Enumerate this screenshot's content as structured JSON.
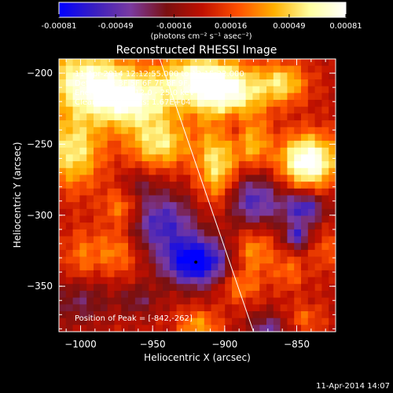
{
  "colors": {
    "background": "#000000",
    "text": "#ffffff",
    "colormap": [
      "#0000ff",
      "#3a1fc0",
      "#7a3aa0",
      "#7a1010",
      "#c01000",
      "#ff5000",
      "#ffb000",
      "#ffffa0",
      "#ffffff"
    ]
  },
  "colorbar": {
    "tick_labels": [
      "-0.00081",
      "-0.00049",
      "-0.00016",
      "0.00016",
      "0.00049",
      "0.00081"
    ],
    "unit_label": "(photons cm⁻² s⁻¹ asec⁻²)"
  },
  "annotations": {
    "time_range": "11-Apr-2014 12:12:55.000 to 12:15:32.000",
    "detectors": "Detectors: 3F 5F 6F 7F 8F 9F, Att 0",
    "energy_range": "Energy Range: 12.0 - 25.0 keV",
    "clean": "Clean     Total counts: 1.67E+04",
    "peak": "Position of Peak = [-842,-262]"
  },
  "footer_timestamp": "11-Apr-2014 14:07",
  "chart_data": {
    "type": "heatmap",
    "title": "Reconstructed RHESSI Image",
    "xlabel": "Heliocentric X (arcsec)",
    "ylabel": "Heliocentric Y (arcsec)",
    "xlim": [
      -1015,
      -823
    ],
    "ylim": [
      -382,
      -190
    ],
    "x_ticks": [
      -1000,
      -950,
      -900,
      -850
    ],
    "y_ticks": [
      -200,
      -250,
      -300,
      -350
    ],
    "x_tick_labels": [
      "−1000",
      "−950",
      "−900",
      "−850"
    ],
    "y_tick_labels": [
      "−200",
      "−250",
      "−300",
      "−350"
    ],
    "colorbar_range": [
      -0.00081,
      0.00081
    ],
    "peak_position": [
      -842,
      -262
    ],
    "limb_line": [
      [
        -945,
        -190
      ],
      [
        -880,
        -382
      ]
    ],
    "min_marker": [
      -920,
      -333
    ],
    "grid": false,
    "blobs": [
      {
        "x": -997,
        "y": -205,
        "sx": 22,
        "sy": 16,
        "a": 1.0
      },
      {
        "x": -965,
        "y": -220,
        "sx": 20,
        "sy": 14,
        "a": 1.0
      },
      {
        "x": -920,
        "y": -205,
        "sx": 18,
        "sy": 13,
        "a": 1.05
      },
      {
        "x": -895,
        "y": -215,
        "sx": 16,
        "sy": 14,
        "a": 0.95
      },
      {
        "x": -860,
        "y": -207,
        "sx": 12,
        "sy": 10,
        "a": 0.75
      },
      {
        "x": -1005,
        "y": -255,
        "sx": 14,
        "sy": 18,
        "a": 0.85
      },
      {
        "x": -945,
        "y": -250,
        "sx": 15,
        "sy": 12,
        "a": 0.8
      },
      {
        "x": -905,
        "y": -265,
        "sx": 10,
        "sy": 20,
        "a": 0.85
      },
      {
        "x": -880,
        "y": -250,
        "sx": 8,
        "sy": 12,
        "a": 0.6
      },
      {
        "x": -842,
        "y": -262,
        "sx": 14,
        "sy": 13,
        "a": 1.3
      },
      {
        "x": -970,
        "y": -295,
        "sx": 10,
        "sy": 10,
        "a": 0.6
      },
      {
        "x": -975,
        "y": -325,
        "sx": 12,
        "sy": 12,
        "a": 0.5
      },
      {
        "x": -1000,
        "y": -330,
        "sx": 8,
        "sy": 14,
        "a": 0.35
      },
      {
        "x": -880,
        "y": -325,
        "sx": 10,
        "sy": 12,
        "a": 0.55
      },
      {
        "x": -890,
        "y": -350,
        "sx": 10,
        "sy": 8,
        "a": 0.45
      },
      {
        "x": -855,
        "y": -340,
        "sx": 8,
        "sy": 9,
        "a": 0.35
      },
      {
        "x": -830,
        "y": -325,
        "sx": 6,
        "sy": 10,
        "a": 0.3
      },
      {
        "x": -918,
        "y": -378,
        "sx": 10,
        "sy": 8,
        "a": 0.55
      },
      {
        "x": -845,
        "y": -373,
        "sx": 9,
        "sy": 7,
        "a": 0.35
      },
      {
        "x": -920,
        "y": -333,
        "sx": 16,
        "sy": 12,
        "a": -1.3
      },
      {
        "x": -945,
        "y": -305,
        "sx": 18,
        "sy": 15,
        "a": -0.85
      },
      {
        "x": -880,
        "y": -290,
        "sx": 14,
        "sy": 14,
        "a": -0.8
      },
      {
        "x": -845,
        "y": -295,
        "sx": 10,
        "sy": 8,
        "a": -0.9
      },
      {
        "x": -870,
        "y": -380,
        "sx": 10,
        "sy": 8,
        "a": -0.6
      },
      {
        "x": -895,
        "y": -235,
        "sx": 8,
        "sy": 10,
        "a": -0.35
      },
      {
        "x": -1000,
        "y": -360,
        "sx": 14,
        "sy": 12,
        "a": -0.45
      },
      {
        "x": -960,
        "y": -360,
        "sx": 10,
        "sy": 8,
        "a": -0.4
      },
      {
        "x": -850,
        "y": -315,
        "sx": 6,
        "sy": 6,
        "a": -0.8
      },
      {
        "x": -960,
        "y": -280,
        "sx": 8,
        "sy": 8,
        "a": -0.3
      }
    ]
  }
}
